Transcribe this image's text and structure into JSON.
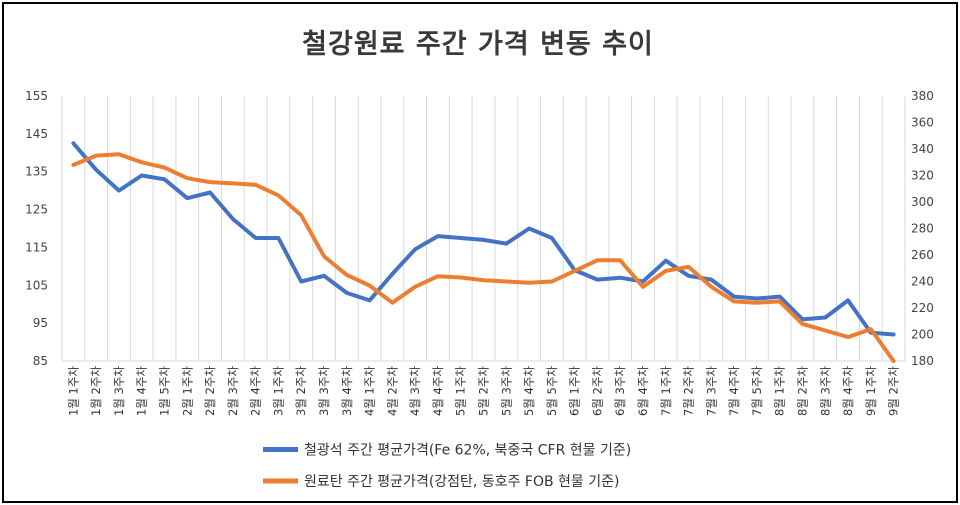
{
  "chart_data": {
    "type": "line",
    "title": "철강원료 주간 가격 변동 추이",
    "categories": [
      "1월 1주차",
      "1월 2주차",
      "1월 3주차",
      "1월 4주차",
      "1월 5주차",
      "2월 1주차",
      "2월 2주차",
      "2월 3주차",
      "2월 4주차",
      "3월 1주차",
      "3월 2주차",
      "3월 3주차",
      "3월 4주차",
      "4월 1주차",
      "4월 2주차",
      "4월 3주차",
      "4월 4주차",
      "5월 1주차",
      "5월 2주차",
      "5월 3주차",
      "5월 4주차",
      "5월 5주차",
      "6월 1주차",
      "6월 2주차",
      "6월 3주차",
      "6월 4주차",
      "7월 1주차",
      "7월 2주차",
      "7월 3주차",
      "7월 4주차",
      "7월 5주차",
      "8월 1주차",
      "8월 2주차",
      "8월 3주차",
      "8월 4주차",
      "9월 1주차",
      "9월 2주차"
    ],
    "left_axis": {
      "min": 85,
      "max": 155,
      "ticks": [
        85,
        95,
        105,
        115,
        125,
        135,
        145,
        155
      ]
    },
    "right_axis": {
      "min": 180,
      "max": 380,
      "ticks": [
        180,
        200,
        220,
        240,
        260,
        280,
        300,
        320,
        340,
        360,
        380
      ]
    },
    "grid": "vertical",
    "legend_position": "bottom",
    "series": [
      {
        "name": "철광석 주간 평균가격(Fe 62%, 북중국 CFR 현물 기준)",
        "axis": "left",
        "color": "#4472C4",
        "values": [
          142.5,
          135.5,
          130,
          134,
          133,
          128,
          129.5,
          122.5,
          117.5,
          117.5,
          106,
          107.5,
          103,
          101,
          108,
          114.5,
          118,
          117.5,
          117,
          116,
          120,
          117.5,
          109,
          106.5,
          107,
          106,
          111.5,
          107.5,
          106.5,
          102,
          101.5,
          102,
          96,
          96.5,
          101,
          92.5,
          92
        ]
      },
      {
        "name": "원료탄 주간 평균가격(강점탄, 동호주 FOB 현물 기준)",
        "axis": "right",
        "color": "#ED7D31",
        "values": [
          328,
          335,
          336,
          330,
          326,
          318,
          315,
          314,
          313,
          305,
          290,
          259,
          245,
          237,
          224,
          236,
          244,
          243,
          241,
          240,
          239,
          240,
          248,
          256,
          256,
          236,
          248,
          251,
          236,
          225,
          224,
          225,
          208,
          203,
          198,
          204,
          180
        ]
      }
    ]
  }
}
